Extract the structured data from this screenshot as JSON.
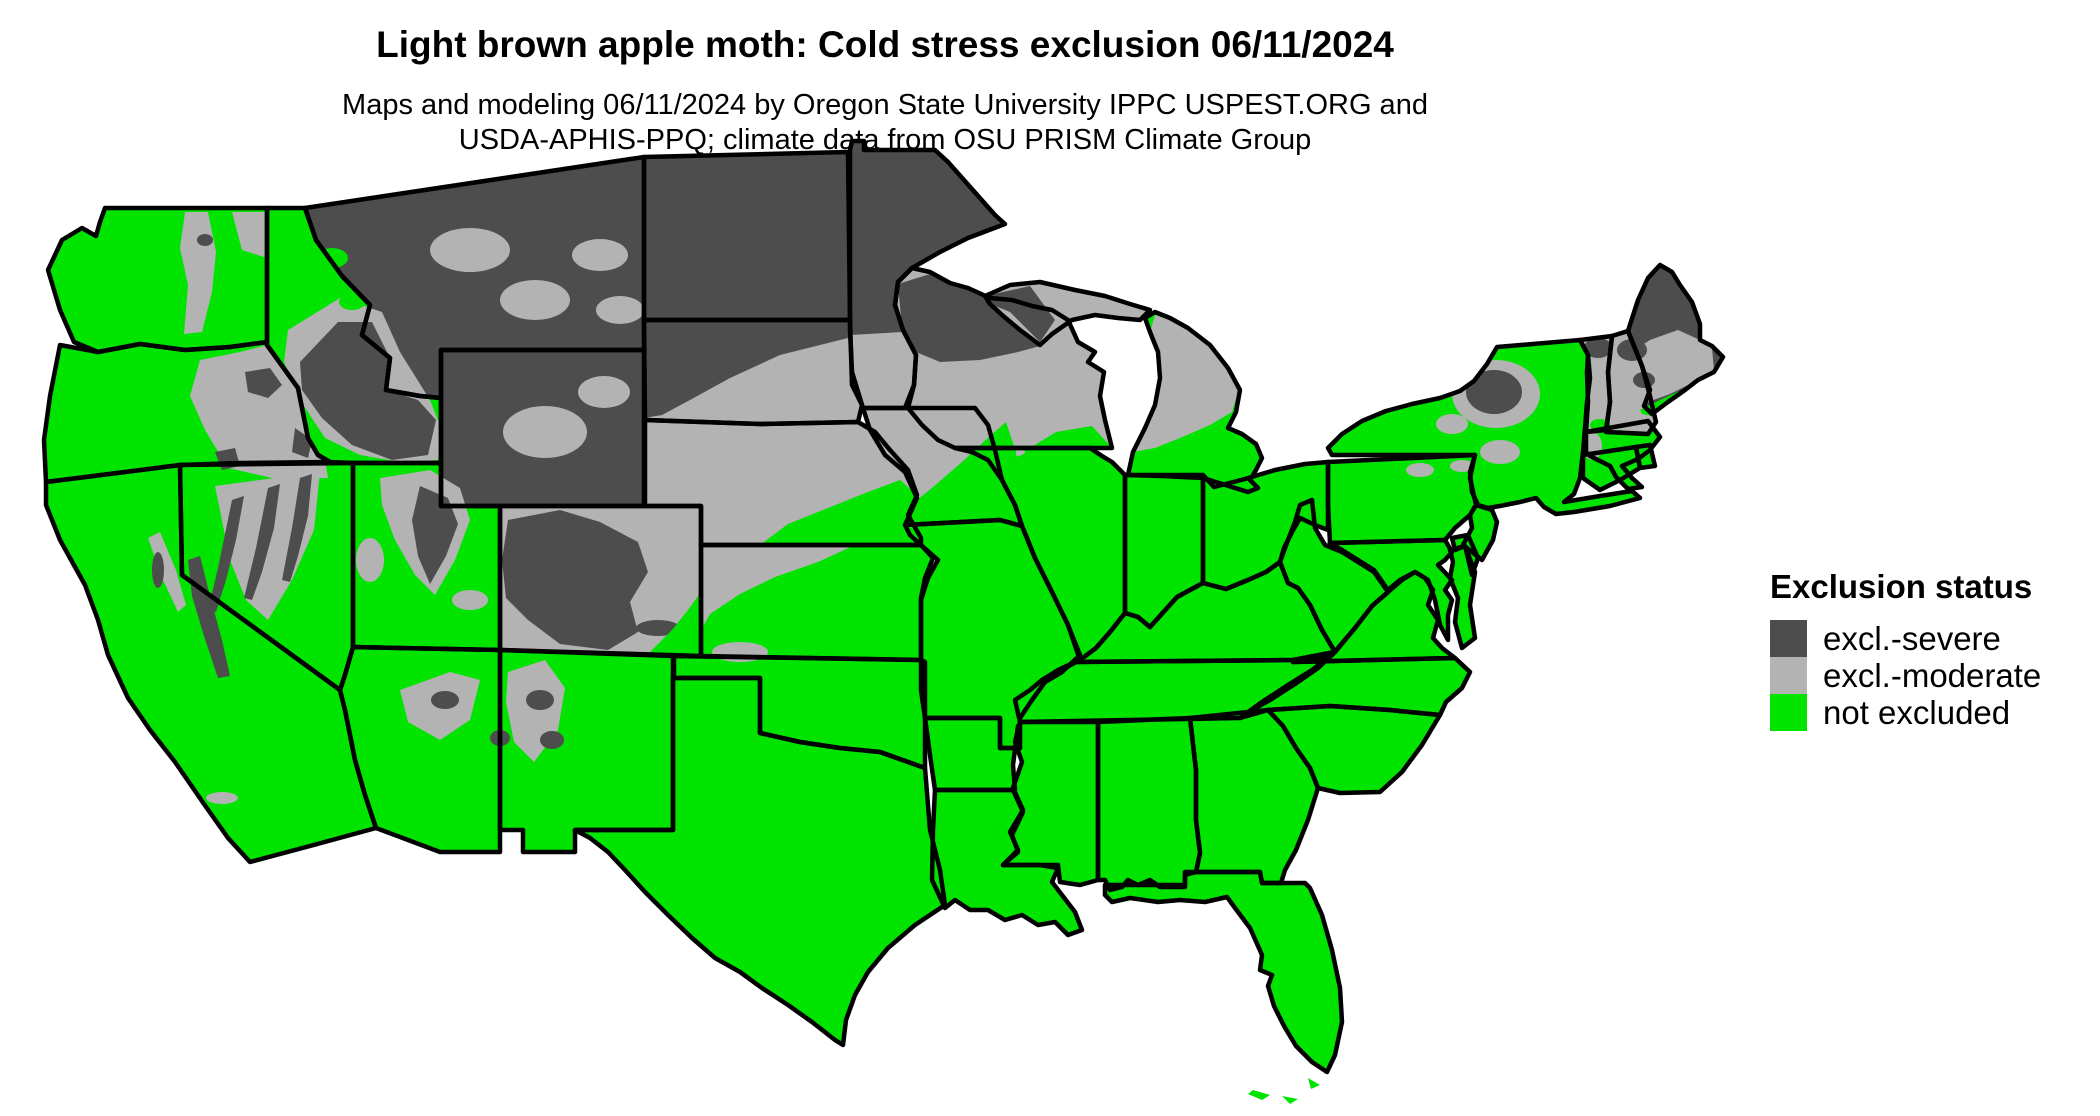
{
  "header": {
    "title": "Light brown apple moth: Cold stress exclusion 06/11/2024",
    "subtitle_line1": "Maps and modeling 06/11/2024 by Oregon State University IPPC USPEST.ORG and",
    "subtitle_line2": "USDA-APHIS-PPQ; climate data from OSU PRISM Climate Group"
  },
  "legend": {
    "title": "Exclusion status",
    "items": [
      {
        "key": "severe",
        "label": "excl.-severe",
        "color": "#4D4D4D"
      },
      {
        "key": "moderate",
        "label": "excl.-moderate",
        "color": "#B3B3B3"
      },
      {
        "key": "not_excluded",
        "label": "not excluded",
        "color": "#00E400"
      }
    ]
  },
  "map": {
    "border_color": "#000000",
    "background_color": "#FFFFFF",
    "states": [
      {
        "id": "WA",
        "status": "not_excluded"
      },
      {
        "id": "OR",
        "status": "not_excluded"
      },
      {
        "id": "CA",
        "status": "not_excluded"
      },
      {
        "id": "NV",
        "status": "not_excluded"
      },
      {
        "id": "ID",
        "status": "not_excluded"
      },
      {
        "id": "MT",
        "status": "severe"
      },
      {
        "id": "WY",
        "status": "severe"
      },
      {
        "id": "UT",
        "status": "not_excluded"
      },
      {
        "id": "CO",
        "status": "moderate"
      },
      {
        "id": "AZ",
        "status": "not_excluded"
      },
      {
        "id": "NM",
        "status": "not_excluded"
      },
      {
        "id": "ND",
        "status": "severe"
      },
      {
        "id": "SD",
        "status": "moderate"
      },
      {
        "id": "NE",
        "status": "moderate"
      },
      {
        "id": "KS",
        "status": "not_excluded"
      },
      {
        "id": "OK",
        "status": "not_excluded"
      },
      {
        "id": "TX",
        "status": "not_excluded"
      },
      {
        "id": "MN",
        "status": "severe"
      },
      {
        "id": "IA",
        "status": "moderate"
      },
      {
        "id": "MO",
        "status": "not_excluded"
      },
      {
        "id": "AR",
        "status": "not_excluded"
      },
      {
        "id": "LA",
        "status": "not_excluded"
      },
      {
        "id": "WI",
        "status": "moderate"
      },
      {
        "id": "IL",
        "status": "not_excluded"
      },
      {
        "id": "MI",
        "status": "not_excluded"
      },
      {
        "id": "IN",
        "status": "not_excluded"
      },
      {
        "id": "OH",
        "status": "not_excluded"
      },
      {
        "id": "KY",
        "status": "not_excluded"
      },
      {
        "id": "TN",
        "status": "not_excluded"
      },
      {
        "id": "MS",
        "status": "not_excluded"
      },
      {
        "id": "AL",
        "status": "not_excluded"
      },
      {
        "id": "GA",
        "status": "not_excluded"
      },
      {
        "id": "FL",
        "status": "not_excluded"
      },
      {
        "id": "SC",
        "status": "not_excluded"
      },
      {
        "id": "NC",
        "status": "not_excluded"
      },
      {
        "id": "VA",
        "status": "not_excluded"
      },
      {
        "id": "WV",
        "status": "not_excluded"
      },
      {
        "id": "MD",
        "status": "not_excluded"
      },
      {
        "id": "DE",
        "status": "not_excluded"
      },
      {
        "id": "PA",
        "status": "not_excluded"
      },
      {
        "id": "NJ",
        "status": "not_excluded"
      },
      {
        "id": "NY",
        "status": "not_excluded"
      },
      {
        "id": "CT",
        "status": "not_excluded"
      },
      {
        "id": "RI",
        "status": "not_excluded"
      },
      {
        "id": "MA",
        "status": "not_excluded"
      },
      {
        "id": "VT",
        "status": "moderate"
      },
      {
        "id": "NH",
        "status": "moderate"
      },
      {
        "id": "ME",
        "status": "severe"
      }
    ]
  }
}
